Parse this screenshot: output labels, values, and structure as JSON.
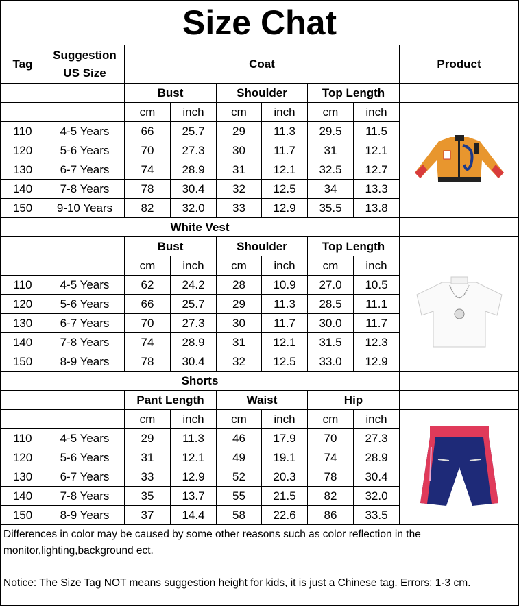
{
  "title": "Size Chat",
  "headers": {
    "tag": "Tag",
    "suggestion": "Suggestion US Size",
    "coat": "Coat",
    "product": "Product"
  },
  "units": [
    "cm",
    "inch",
    "cm",
    "inch",
    "cm",
    "inch"
  ],
  "sections": [
    {
      "name": "Coat",
      "measures": [
        "Bust",
        "Shoulder",
        "Top Length"
      ],
      "product_icon": "jacket-icon",
      "rows": [
        [
          "110",
          "4-5 Years",
          "66",
          "25.7",
          "29",
          "11.3",
          "29.5",
          "11.5"
        ],
        [
          "120",
          "5-6 Years",
          "70",
          "27.3",
          "30",
          "11.7",
          "31",
          "12.1"
        ],
        [
          "130",
          "6-7 Years",
          "74",
          "28.9",
          "31",
          "12.1",
          "32.5",
          "12.7"
        ],
        [
          "140",
          "7-8 Years",
          "78",
          "30.4",
          "32",
          "12.5",
          "34",
          "13.3"
        ],
        [
          "150",
          "9-10 Years",
          "82",
          "32.0",
          "33",
          "12.9",
          "35.5",
          "13.8"
        ]
      ]
    },
    {
      "name": "White Vest",
      "measures": [
        "Bust",
        "Shoulder",
        "Top Length"
      ],
      "product_icon": "white-tshirt-icon",
      "rows": [
        [
          "110",
          "4-5 Years",
          "62",
          "24.2",
          "28",
          "10.9",
          "27.0",
          "10.5"
        ],
        [
          "120",
          "5-6 Years",
          "66",
          "25.7",
          "29",
          "11.3",
          "28.5",
          "11.1"
        ],
        [
          "130",
          "6-7 Years",
          "70",
          "27.3",
          "30",
          "11.7",
          "30.0",
          "11.7"
        ],
        [
          "140",
          "7-8 Years",
          "74",
          "28.9",
          "31",
          "12.1",
          "31.5",
          "12.3"
        ],
        [
          "150",
          "8-9 Years",
          "78",
          "30.4",
          "32",
          "12.5",
          "33.0",
          "12.9"
        ]
      ]
    },
    {
      "name": "Shorts",
      "measures": [
        "Pant Length",
        "Waist",
        "Hip"
      ],
      "product_icon": "shorts-icon",
      "rows": [
        [
          "110",
          "4-5 Years",
          "29",
          "11.3",
          "46",
          "17.9",
          "70",
          "27.3"
        ],
        [
          "120",
          "5-6 Years",
          "31",
          "12.1",
          "49",
          "19.1",
          "74",
          "28.9"
        ],
        [
          "130",
          "6-7 Years",
          "33",
          "12.9",
          "52",
          "20.3",
          "78",
          "30.4"
        ],
        [
          "140",
          "7-8 Years",
          "35",
          "13.7",
          "55",
          "21.5",
          "82",
          "32.0"
        ],
        [
          "150",
          "8-9 Years",
          "37",
          "14.4",
          "58",
          "22.6",
          "86",
          "33.5"
        ]
      ]
    }
  ],
  "note": "Differences in color may be caused by some other reasons such as color reflection in the monitor,lighting,background ect.",
  "notice": "Notice: The Size Tag NOT means suggestion height for kids, it is just a Chinese tag. Errors: 1-3 cm."
}
